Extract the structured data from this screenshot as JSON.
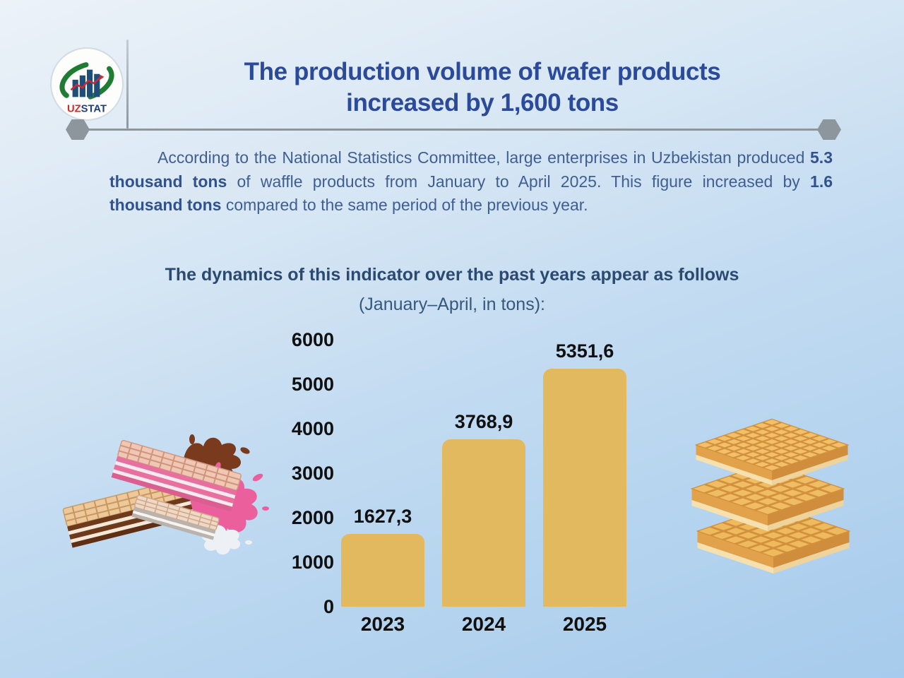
{
  "logo": {
    "name": "UZSTAT",
    "uz": "UZ",
    "stat": "STAT"
  },
  "header": {
    "title": "The production volume of wafer products increased by 1,600 tons"
  },
  "intro": {
    "segments": [
      {
        "text": "According to the National Statistics Committee, large enterprises in Uzbekistan produced ",
        "bold": false
      },
      {
        "text": "5.3 thousand tons",
        "bold": true
      },
      {
        "text": " of waffle products from January to April 2025. This figure increased by ",
        "bold": false
      },
      {
        "text": "1.6 thousand tons",
        "bold": true
      },
      {
        "text": " compared to the same period of the previous year.",
        "bold": false
      }
    ]
  },
  "section": {
    "heading": "The dynamics of this indicator over the past years appear as follows",
    "subheading": "(January–April, in tons):"
  },
  "chart_data": {
    "type": "bar",
    "title": "The dynamics of this indicator over the past years appear as follows (January–April, in tons)",
    "categories": [
      "2023",
      "2024",
      "2025"
    ],
    "values": [
      1627.3,
      3768.9,
      5351.6
    ],
    "value_labels": [
      "1627,3",
      "3768,9",
      "5351,6"
    ],
    "xlabel": "",
    "ylabel": "",
    "ylim": [
      0,
      6000
    ],
    "yticks": [
      0,
      1000,
      2000,
      3000,
      4000,
      5000,
      6000
    ],
    "grid": false,
    "legend": null,
    "bar_color": "#e3b95f",
    "label_color": "#101010"
  },
  "illustrations": {
    "left_name": "wafer-sticks-with-chocolate-and-pink-cream-splash",
    "right_name": "stack-of-three-golden-waffle-wafers"
  },
  "colors": {
    "title_blue": "#2b4a9a",
    "body_text": "#3f5e91",
    "heading_navy": "#2c4a70",
    "bar_gold": "#e3b95f",
    "chart_text": "#101010",
    "divider_gray": "#8d959d",
    "logo_green": "#1e7c33",
    "logo_blue": "#1f4e79",
    "logo_red": "#d42a2a",
    "background_top": "#ecf2f8",
    "background_bottom": "#a6cbec"
  }
}
